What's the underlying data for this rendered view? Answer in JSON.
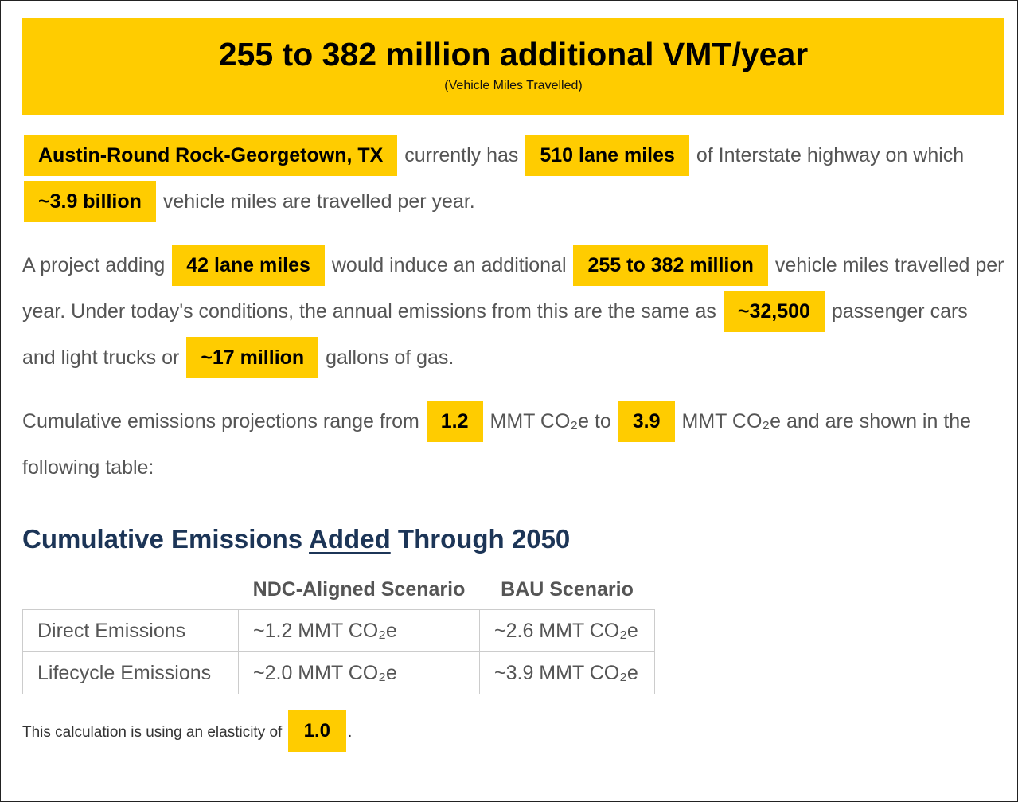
{
  "header": {
    "title": "255 to 382 million additional VMT/year",
    "subtitle": "(Vehicle Miles Travelled)"
  },
  "paragraphs": [
    [
      "Austin-Round Rock-Georgetown, TX",
      "currently has",
      "510 lane miles",
      "of Interstate highway on which",
      "~3.9 billion",
      "vehicle miles are travelled per year."
    ],
    [
      "A project adding",
      "42 lane miles",
      "would induce an additional",
      "255 to 382 million",
      "vehicle miles travelled per year. Under today's conditions, the annual emissions from this are the same as",
      "~32,500",
      "passenger cars and light trucks or",
      "~17 million",
      "gallons of gas."
    ],
    [
      "Cumulative emissions projections range from",
      "1.2",
      "MMT CO₂e to",
      "3.9",
      "MMT CO₂e and are shown in the following table:"
    ]
  ],
  "heading": [
    "Cumulative Emissions",
    "Added",
    "Through 2050"
  ],
  "table": {
    "columns": [
      "NDC-Aligned Scenario",
      "BAU Scenario"
    ],
    "rows": [
      [
        "Direct Emissions",
        "~1.2 MMT CO₂e",
        "~2.6 MMT CO₂e"
      ],
      [
        "Lifecycle Emissions",
        "~2.0 MMT CO₂e",
        "~3.9 MMT CO₂e"
      ]
    ]
  },
  "footnote": [
    "This calculation is using an elasticity of",
    "1.0",
    "."
  ]
}
